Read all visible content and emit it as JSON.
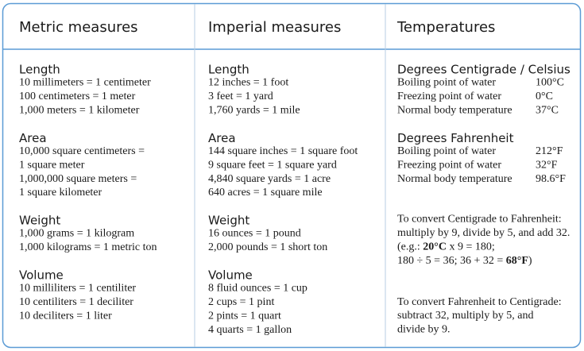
{
  "columns": [
    {
      "title": "Metric measures",
      "sections": [
        {
          "heading": "Length",
          "lines": [
            "10 millimeters = 1 centimeter",
            "100 centimeters = 1 meter",
            "1,000 meters = 1 kilometer"
          ]
        },
        {
          "heading": "Area",
          "lines": [
            "10,000 square centimeters =",
            "1 square meter",
            "1,000,000 square meters =",
            "1 square kilometer"
          ]
        },
        {
          "heading": "Weight",
          "lines": [
            "1,000 grams = 1 kilogram",
            "1,000 kilograms = 1 metric ton"
          ]
        },
        {
          "heading": "Volume",
          "lines": [
            "10 milliliters = 1 centiliter",
            "10 centiliters = 1 deciliter",
            "10 deciliters = 1 liter"
          ]
        }
      ]
    },
    {
      "title": "Imperial measures",
      "sections": [
        {
          "heading": "Length",
          "lines": [
            "12 inches = 1 foot",
            "3 feet = 1 yard",
            "1,760 yards = 1 mile"
          ]
        },
        {
          "heading": "Area",
          "lines": [
            "144 square inches = 1 square foot",
            "9 square feet = 1 square yard",
            "4,840 square yards = 1 acre",
            "640 acres = 1 square mile"
          ]
        },
        {
          "heading": "Weight",
          "lines": [
            "16 ounces = 1 pound",
            "2,000 pounds = 1 short ton"
          ]
        },
        {
          "heading": "Volume",
          "lines": [
            "8 fluid ounces = 1 cup",
            "2 cups = 1 pint",
            "2 pints = 1 quart",
            "4 quarts = 1 gallon"
          ]
        }
      ]
    },
    {
      "title": "Temperatures",
      "sections": [
        {
          "heading": "Degrees Centigrade / Celsius",
          "rows": [
            {
              "label": "Boiling point of water",
              "value": "100°C"
            },
            {
              "label": "Freezing point of water",
              "value": "0°C"
            },
            {
              "label": "Normal body temperature",
              "value": "37°C"
            }
          ]
        },
        {
          "heading": "Degrees Fahrenheit",
          "rows": [
            {
              "label": "Boiling point of water",
              "value": "212°F"
            },
            {
              "label": "Freezing point of water",
              "value": "32°F"
            },
            {
              "label": "Normal body temperature",
              "value": "98.6°F"
            }
          ]
        }
      ],
      "notes": [
        {
          "lines": [
            [
              {
                "text": "To convert Centigrade to Fahrenheit:"
              }
            ],
            [
              {
                "text": "multiply by 9, divide by 5, and add 32."
              }
            ],
            [
              {
                "text": "(e.g.: "
              },
              {
                "text": "20°C",
                "bold": true
              },
              {
                "text": " x 9 = 180;"
              }
            ],
            [
              {
                "text": "180 ÷ 5 = 36; 36 + 32 = "
              },
              {
                "text": "68°F",
                "bold": true
              },
              {
                "text": ")"
              }
            ]
          ]
        },
        {
          "lines": [
            [
              {
                "text": "To convert Fahrenheit to Centigrade:"
              }
            ],
            [
              {
                "text": "subtract 32, multiply by 5, and"
              }
            ],
            [
              {
                "text": "divide by 9."
              }
            ]
          ]
        }
      ]
    }
  ]
}
